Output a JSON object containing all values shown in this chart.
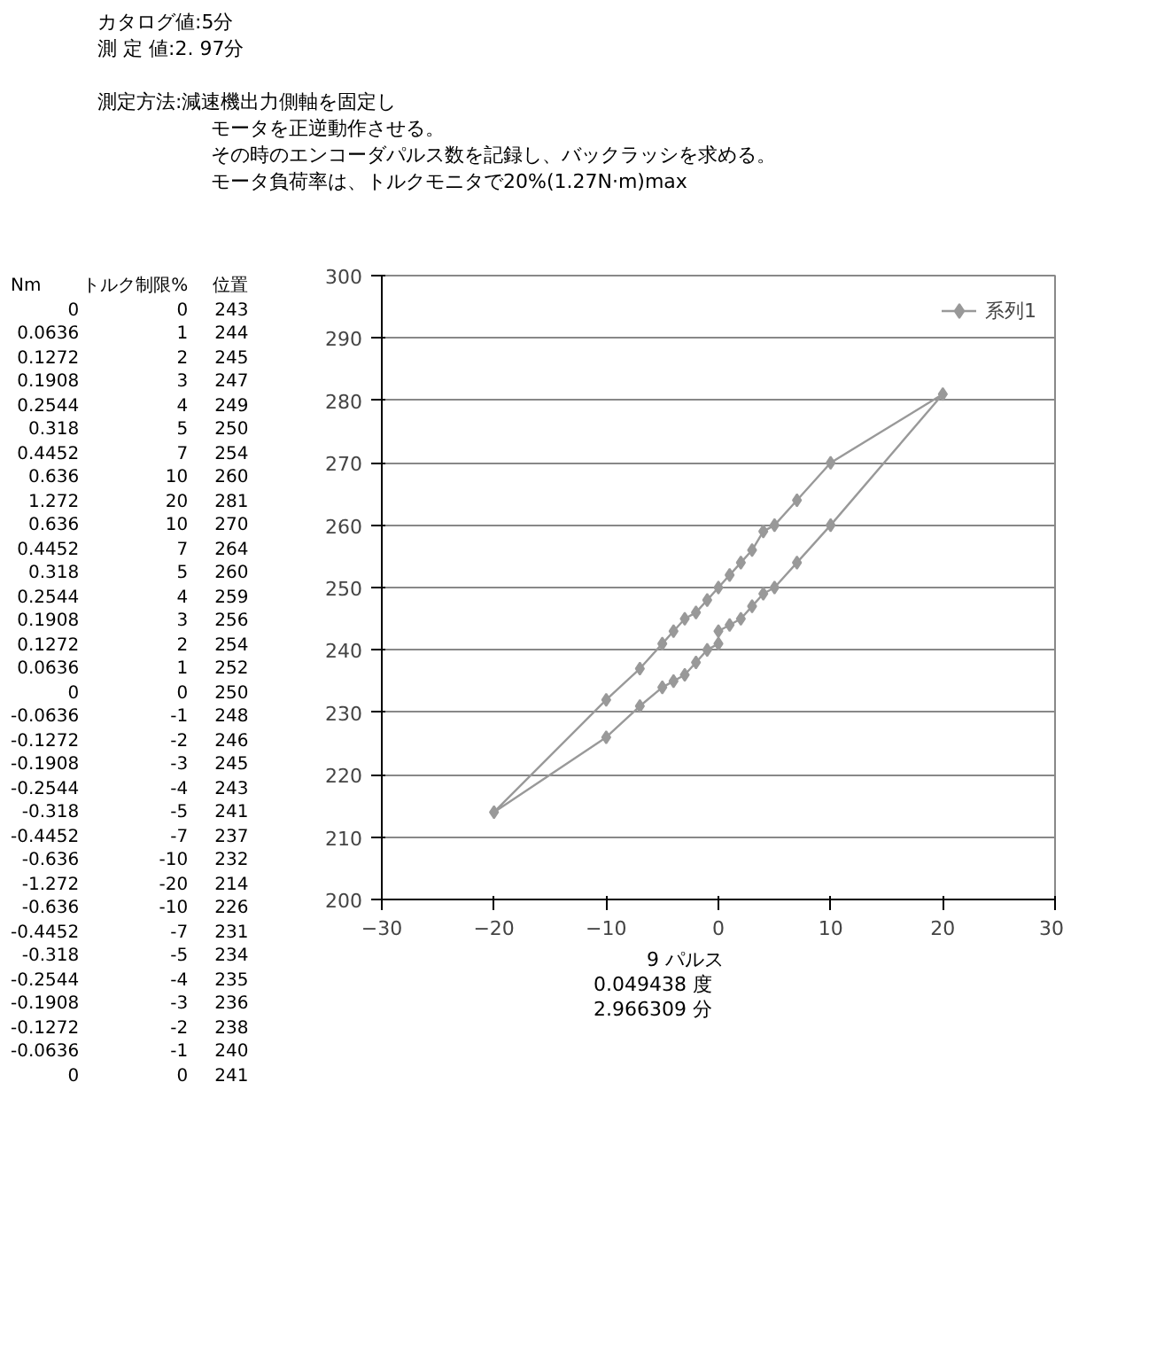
{
  "chart_data": {
    "type": "line",
    "marker": "diamond",
    "line_style": "solid",
    "grid": "y",
    "legend": "top right",
    "annotations": [
      "カタログ値:5分",
      "測 定 値:2. 97分",
      "測定方法:減速機出力側軸を固定し",
      "モータを正逆動作させる。",
      "その時のエンコーダパルス数を記録し、バックラッシを求める。",
      "モータ負荷率は、トルクモニタで20%(1.27N·m)max",
      "9 パルス",
      "0.049438 度",
      "2.966309 分",
      "Nm",
      "トルク制限%",
      "位置",
      "0",
      "0.0636",
      "0.1272",
      "0.1908",
      "0.2544",
      "0.318",
      "0.4452",
      "0.636",
      "1.272",
      "0.636",
      "0.4452",
      "0.318",
      "0.2544",
      "0.1908",
      "0.1272",
      "0.0636",
      "0",
      "-0.0636",
      "-0.1272",
      "-0.1908",
      "-0.2544",
      "-0.318",
      "-0.4452",
      "-0.636",
      "-1.272",
      "-0.636",
      "-0.4452",
      "-0.318",
      "-0.2544",
      "-0.1908",
      "-0.1272",
      "-0.0636",
      "0",
      "0",
      "1",
      "2",
      "3",
      "4",
      "5",
      "7",
      "10",
      "20",
      "10",
      "7",
      "5",
      "4",
      "3",
      "2",
      "1",
      "0",
      "-1",
      "-2",
      "-3",
      "-4",
      "-5",
      "-7",
      "-10",
      "-20",
      "-10",
      "-7",
      "-5",
      "-4",
      "-3",
      "-2",
      "-1",
      "0",
      "243",
      "244",
      "245",
      "247",
      "249",
      "250",
      "254",
      "260",
      "281",
      "270",
      "264",
      "260",
      "259",
      "256",
      "254",
      "252",
      "250",
      "248",
      "246",
      "245",
      "243",
      "241",
      "237",
      "232",
      "214",
      "226",
      "231",
      "234",
      "235",
      "236",
      "238",
      "240",
      "241"
    ],
    "xlim": [
      -30,
      30
    ],
    "xticks": [
      -30,
      -20,
      -10,
      0,
      10,
      20,
      30
    ],
    "ylim": [
      200,
      300
    ],
    "yticks": [
      200,
      210,
      220,
      230,
      240,
      250,
      260,
      270,
      280,
      290,
      300
    ],
    "series": [
      {
        "name": "系列1",
        "color": "#999999",
        "x": [
          0,
          1,
          2,
          3,
          4,
          5,
          7,
          10,
          20,
          10,
          7,
          5,
          4,
          3,
          2,
          1,
          0,
          -1,
          -2,
          -3,
          -4,
          -5,
          -7,
          -10,
          -20,
          -10,
          -7,
          -5,
          -4,
          -3,
          -2,
          -1,
          0
        ],
        "values": [
          243,
          244,
          245,
          247,
          249,
          250,
          254,
          260,
          281,
          270,
          264,
          260,
          259,
          256,
          254,
          252,
          250,
          248,
          246,
          245,
          243,
          241,
          237,
          232,
          214,
          226,
          231,
          234,
          235,
          236,
          238,
          240,
          241
        ]
      }
    ]
  }
}
